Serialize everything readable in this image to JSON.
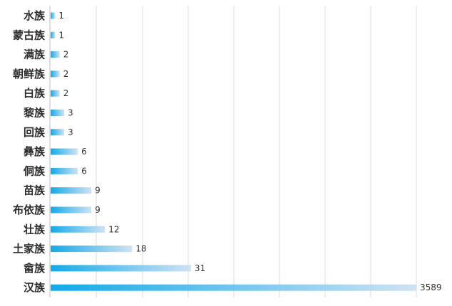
{
  "chart_data": {
    "type": "bar",
    "orientation": "horizontal",
    "title": "",
    "xlabel": "",
    "ylabel": "",
    "categories": [
      "水族",
      "蒙古族",
      "满族",
      "朝鲜族",
      "白族",
      "黎族",
      "回族",
      "彝族",
      "侗族",
      "苗族",
      "布依族",
      "壮族",
      "土家族",
      "畲族",
      "汉族"
    ],
    "values": [
      1,
      1,
      2,
      2,
      2,
      3,
      3,
      6,
      6,
      9,
      9,
      12,
      18,
      31,
      3589
    ],
    "value_labels": [
      "1",
      "1",
      "2",
      "2",
      "2",
      "3",
      "3",
      "6",
      "6",
      "9",
      "9",
      "12",
      "18",
      "31",
      "3589"
    ],
    "axis_break": true,
    "gridlines": true,
    "legend": "none",
    "colors": {
      "bar_start": "#13aae8",
      "bar_end": "#cfe2f3",
      "grid": "#d9d9d9"
    }
  }
}
